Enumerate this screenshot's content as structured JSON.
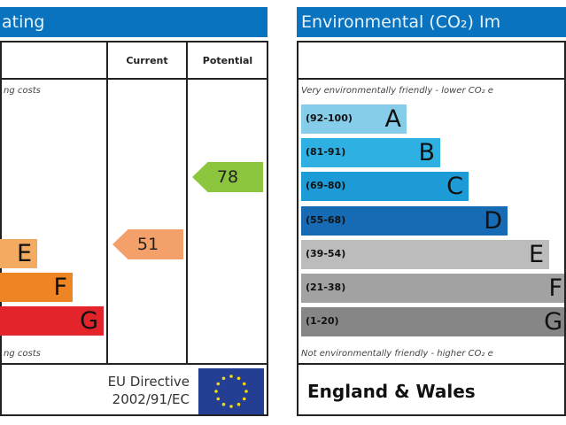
{
  "energy": {
    "title": "ating",
    "col_current": "Current",
    "col_potential": "Potential",
    "top_note": "ng costs",
    "bottom_note": "ng costs",
    "footer": [
      "EU Directive",
      "2002/91/EC"
    ],
    "bands": [
      {
        "letter": "E",
        "color": "#f3ab62"
      },
      {
        "letter": "F",
        "color": "#ee8525"
      },
      {
        "letter": "G",
        "color": "#e3252b"
      }
    ],
    "current": {
      "value": "51",
      "color": "#f4a06a"
    },
    "potential": {
      "value": "78",
      "color": "#8cc63f"
    }
  },
  "environment": {
    "title": "Environmental (CO₂) Im",
    "top_note": "Very environmentally friendly - lower CO₂ e",
    "bottom_note": "Not environmentally friendly - higher CO₂ e",
    "footer": "England & Wales",
    "bands": [
      {
        "range": "(92-100)",
        "letter": "A",
        "color": "#86cdea"
      },
      {
        "range": "(81-91)",
        "letter": "B",
        "color": "#2eb0e2"
      },
      {
        "range": "(69-80)",
        "letter": "C",
        "color": "#1d9bd7"
      },
      {
        "range": "(55-68)",
        "letter": "D",
        "color": "#176ab4"
      },
      {
        "range": "(39-54)",
        "letter": "E",
        "color": "#bcbcbc"
      },
      {
        "range": "(21-38)",
        "letter": "F",
        "color": "#a2a2a2"
      },
      {
        "range": "(1-20)",
        "letter": "G",
        "color": "#868686"
      }
    ]
  },
  "chart_data": {
    "type": "bar",
    "categories": [
      "Current",
      "Potential"
    ],
    "values": [
      51,
      78
    ],
    "energy_bands_visible": [
      "E",
      "F",
      "G"
    ],
    "environmental_bands": [
      "(92-100) A",
      "(81-91) B",
      "(69-80) C",
      "(55-68) D",
      "(39-54) E",
      "(21-38) F",
      "(1-20) G"
    ]
  }
}
